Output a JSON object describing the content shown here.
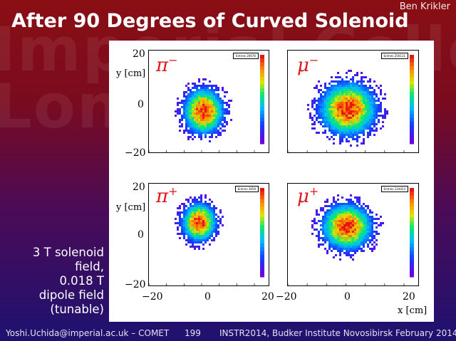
{
  "author": "Ben Krikler",
  "title": "After 90 Degrees of Curved Solenoid",
  "watermark_lines": [
    "Imperial College",
    "London"
  ],
  "plots": [
    {
      "particle": "π",
      "charge": "−",
      "stats": "Entries 20676",
      "mean_x": 0.5,
      "mean_y": -3.5,
      "sigma_x": 7,
      "sigma_y": 6
    },
    {
      "particle": "μ",
      "charge": "−",
      "stats": "Entries 250111",
      "mean_x": 0.5,
      "mean_y": -2.5,
      "sigma_x": 9,
      "sigma_y": 7
    },
    {
      "particle": "π",
      "charge": "+",
      "stats": "Entries 3659",
      "mean_x": -2,
      "mean_y": 6,
      "sigma_x": 6,
      "sigma_y": 5
    },
    {
      "particle": "μ",
      "charge": "+",
      "stats": "Entries 124423",
      "mean_x": 0,
      "mean_y": 4,
      "sigma_x": 8,
      "sigma_y": 6
    }
  ],
  "axes": {
    "x_label": "x [cm]",
    "y_label": "y [cm]",
    "y_ticks_top": [
      "20",
      "0",
      "−20"
    ],
    "y_ticks_bottom": [
      "20",
      "0",
      "−20"
    ],
    "x_ticks_left": [
      "−20",
      "0",
      "20"
    ],
    "x_ticks_right": [
      "−20",
      "0",
      "20"
    ]
  },
  "note": [
    "3 T solenoid",
    "field,",
    "0.018 T",
    "dipole field",
    "(tunable)"
  ],
  "footer": {
    "email": "Yoshi.Uchida@imperial.ac.uk – COMET",
    "page": "199",
    "event": "INSTR2014, Budker Institute Novosibirsk February 2014"
  },
  "colors": {
    "accent_particle": "#e0141a",
    "background_top": "#8a0f14",
    "background_bottom": "#1e1270"
  }
}
